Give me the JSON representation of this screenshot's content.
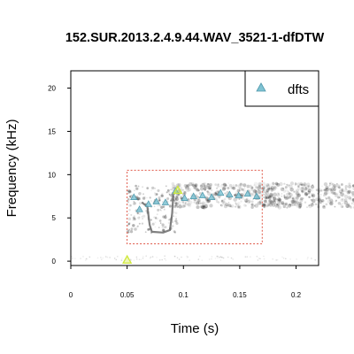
{
  "chart_data": {
    "type": "scatter",
    "title": "152.SUR.2013.2.4.9.44.WAV_3521-1-dfDTW",
    "xlabel": "Time (s)",
    "ylabel": "Frequency (kHz)",
    "xlim": [
      0,
      0.22
    ],
    "ylim": [
      -0.5,
      22
    ],
    "x_ticks": [
      0,
      0.05,
      0.1,
      0.15,
      0.2
    ],
    "x_tick_labels": [
      "0",
      "0.05",
      "0.1",
      "0.15",
      "0.2"
    ],
    "y_ticks": [
      0,
      5,
      10,
      15,
      20
    ],
    "y_tick_labels": [
      "0",
      "5",
      "10",
      "15",
      "20"
    ],
    "grid": false,
    "legend": {
      "placement": "top-right",
      "entries": [
        "dfts"
      ]
    },
    "colors": {
      "dfts": "#7fc3d3",
      "highlight": "#cfe83a",
      "selection_box": "#e05a4a",
      "spectrogram": "#000000"
    },
    "series": [
      {
        "name": "dfts",
        "marker": "triangle",
        "points": [
          [
            0.056,
            7.4
          ],
          [
            0.061,
            6.0
          ],
          [
            0.069,
            6.6
          ],
          [
            0.076,
            6.9
          ],
          [
            0.084,
            6.8
          ],
          [
            0.093,
            8.1
          ],
          [
            0.101,
            7.3
          ],
          [
            0.109,
            7.5
          ],
          [
            0.117,
            7.6
          ],
          [
            0.125,
            7.4
          ],
          [
            0.133,
            7.9
          ],
          [
            0.141,
            7.7
          ],
          [
            0.149,
            7.6
          ],
          [
            0.157,
            7.8
          ],
          [
            0.165,
            7.5
          ]
        ]
      }
    ],
    "highlight_points": [
      [
        0.095,
        8.2
      ],
      [
        0.05,
        0.15
      ]
    ],
    "selection_box": {
      "x": [
        0.05,
        0.17
      ],
      "y": [
        2.0,
        10.5
      ]
    }
  }
}
